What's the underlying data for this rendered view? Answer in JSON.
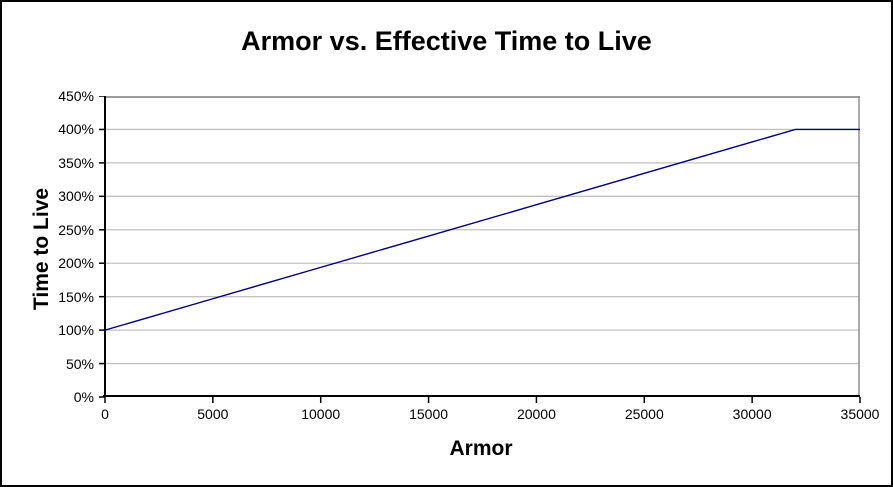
{
  "chart_data": {
    "type": "line",
    "title": "Armor vs. Effective Time to Live",
    "xlabel": "Armor",
    "ylabel": "Time to Live",
    "xlim": [
      0,
      35000
    ],
    "ylim_percent": [
      0,
      450
    ],
    "x_ticks": [
      0,
      5000,
      10000,
      15000,
      20000,
      25000,
      30000,
      35000
    ],
    "y_ticks": [
      "0%",
      "50%",
      "100%",
      "150%",
      "200%",
      "250%",
      "300%",
      "350%",
      "400%",
      "450%"
    ],
    "grid": "horizontal-only",
    "legend": "none",
    "series": [
      {
        "name": "Effective Time to Live",
        "color": "#000080",
        "points": [
          [
            0,
            100
          ],
          [
            5000,
            146.9
          ],
          [
            10000,
            193.8
          ],
          [
            15000,
            240.6
          ],
          [
            20000,
            287.5
          ],
          [
            25000,
            334.4
          ],
          [
            30000,
            381.3
          ],
          [
            32000,
            400
          ],
          [
            35000,
            400
          ]
        ]
      }
    ],
    "annotations": {
      "plateau_value_percent": 400,
      "plateau_starts_at_armor": 32000,
      "start_value_percent": 100
    }
  },
  "colors": {
    "line": "#000080",
    "gridline": "#c2c2c2",
    "plot_border": "#8f8f8f",
    "axis": "#000000",
    "background": "#ffffff",
    "figure_border": "#000000"
  }
}
